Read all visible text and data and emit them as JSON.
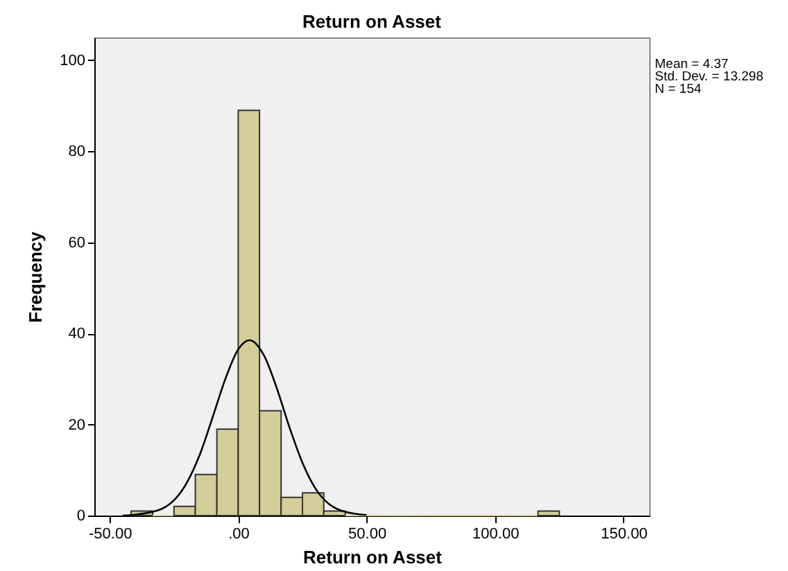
{
  "chart_data": {
    "type": "histogram",
    "title": "Return on Asset",
    "xlabel": "Return on Asset",
    "ylabel": "Frequency",
    "bins": [
      -41.7,
      -33.3,
      -25,
      -16.7,
      -8.3,
      0,
      8.3,
      16.7,
      25,
      33.3,
      41.7,
      50,
      58.3,
      66.7,
      75,
      83.3,
      91.7,
      100,
      108.3,
      116.7,
      125
    ],
    "values": [
      1,
      0,
      2,
      9,
      19,
      89,
      23,
      4,
      5,
      1,
      0,
      0,
      0,
      0,
      0,
      0,
      0,
      0,
      0,
      1
    ],
    "color": "#d3ce97",
    "series": [
      {
        "type": "line",
        "color": "#000000",
        "x": [
          -45,
          -40,
          -30,
          -20,
          -15,
          -10,
          -5,
          0,
          4.37,
          10,
          15,
          20,
          25,
          30,
          35,
          40,
          50
        ],
        "values": [
          0,
          0.2,
          1.4,
          7.2,
          13.3,
          21.5,
          30,
          36.5,
          38.5,
          35.2,
          28,
          19.3,
          11.6,
          6,
          2.7,
          1.1,
          0.1
        ]
      }
    ],
    "xlim": [
      -56,
      160
    ],
    "xticks": [
      {
        "value": -50,
        "label": "-50.00"
      },
      {
        "value": 0,
        "label": ".00"
      },
      {
        "value": 50,
        "label": "50.00"
      },
      {
        "value": 100,
        "label": "100.00"
      },
      {
        "value": 150,
        "label": "150.00"
      }
    ],
    "ylim": [
      0,
      105
    ],
    "yticks": [
      0,
      20,
      40,
      60,
      80,
      100
    ],
    "grid": false,
    "annotations": [
      "Mean = 4.37",
      "Std. Dev. = 13.298",
      "N = 154"
    ]
  }
}
